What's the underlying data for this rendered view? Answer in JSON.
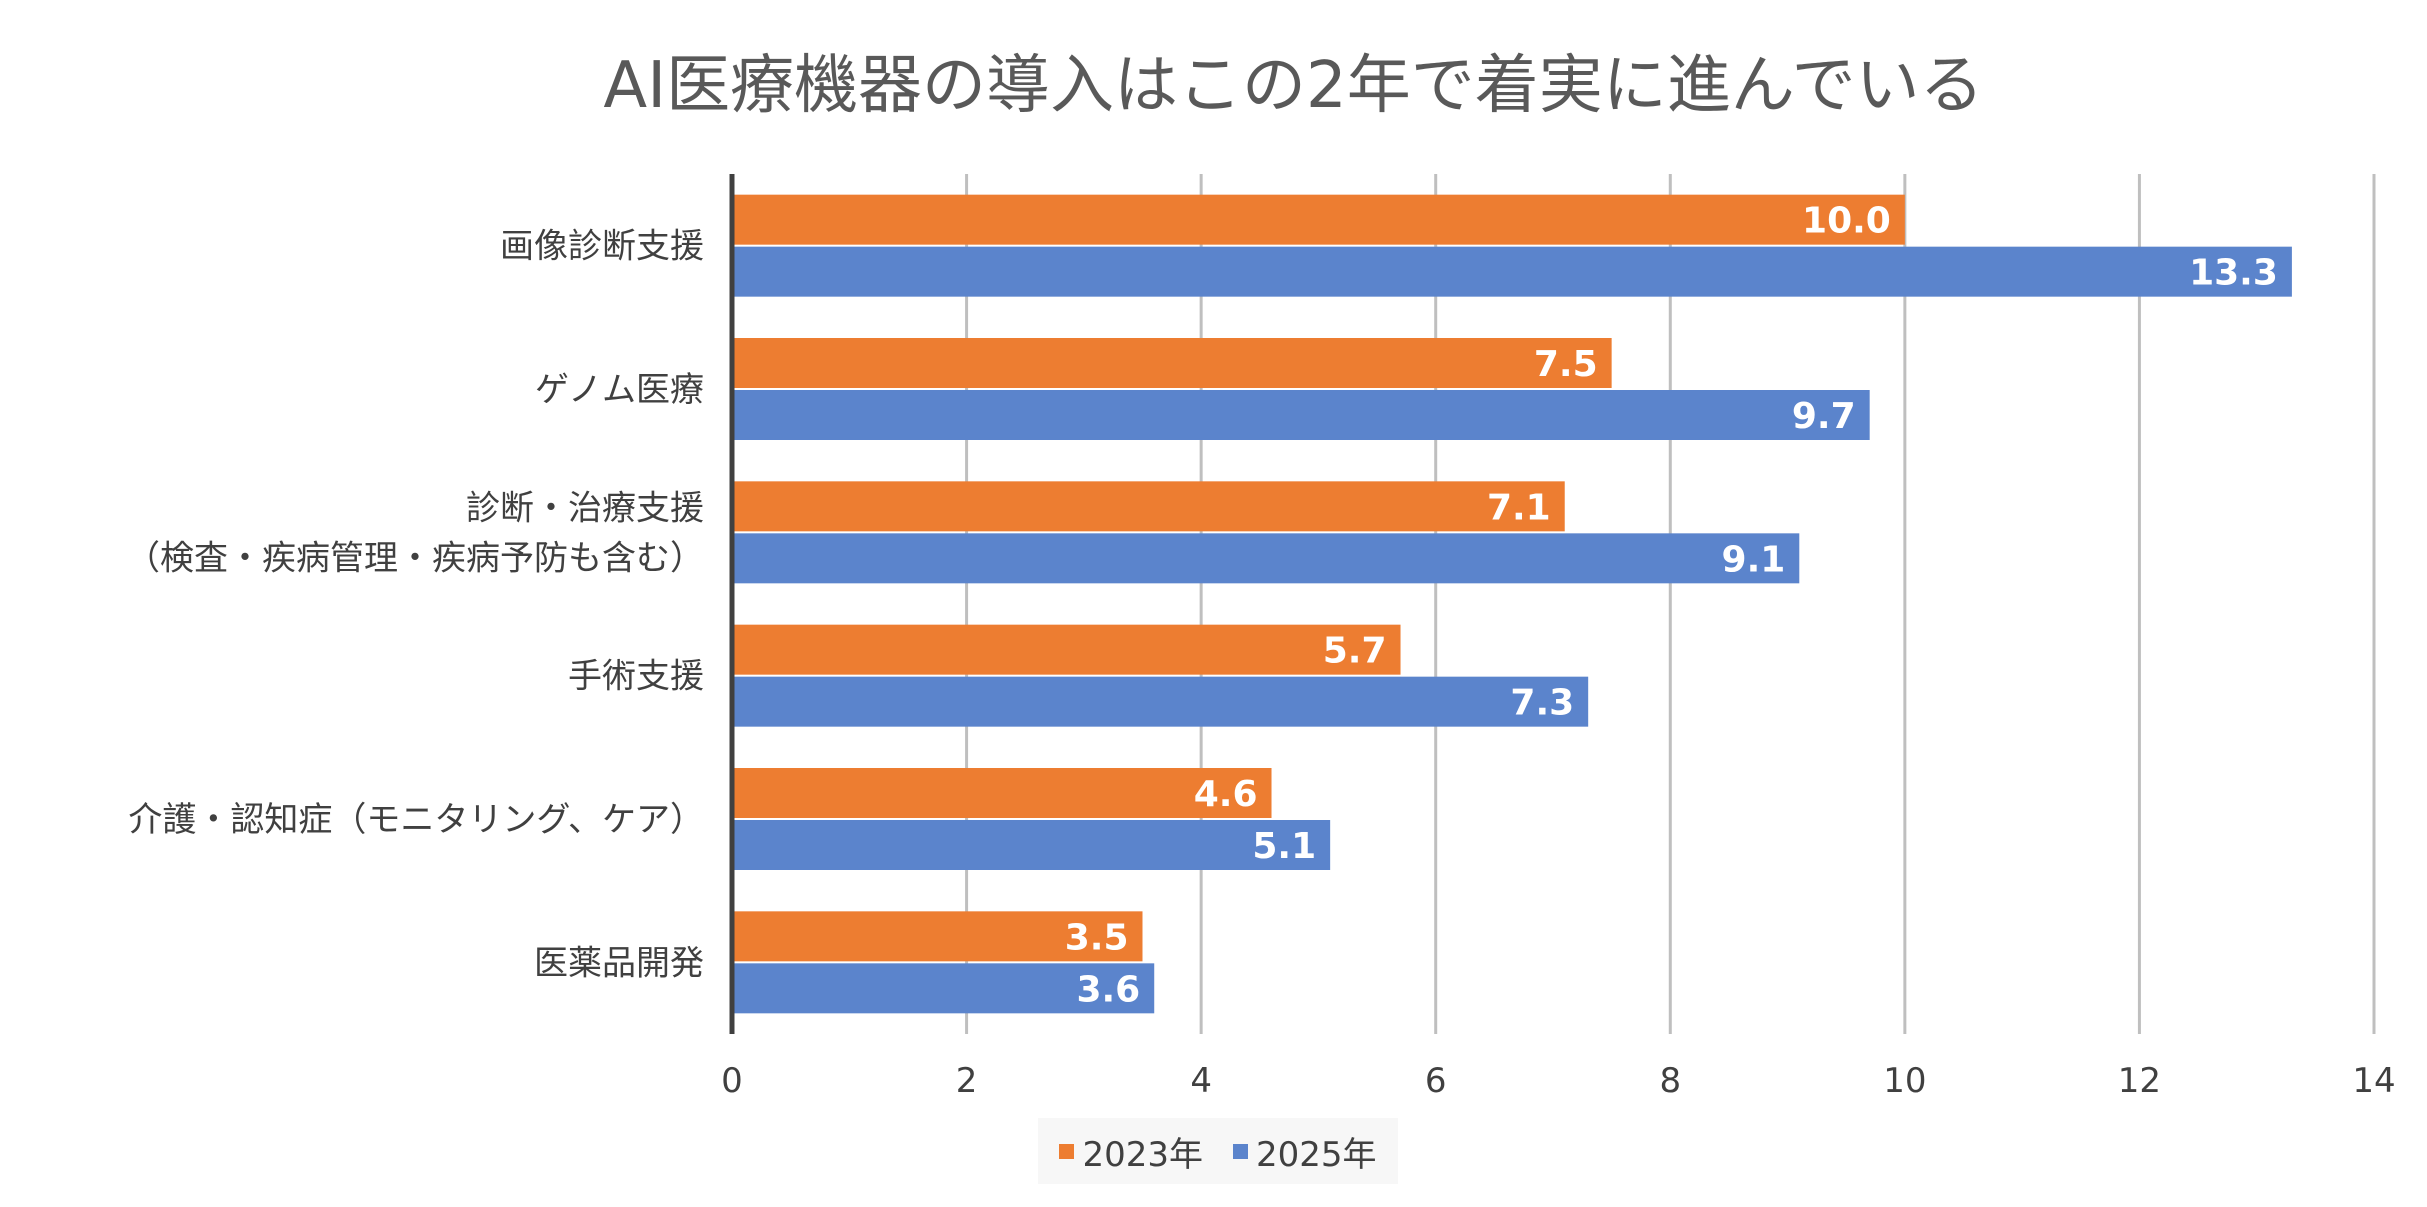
{
  "chart_data": {
    "type": "bar",
    "orientation": "horizontal",
    "title": "AI医療機器の導入はこの2年で着実に進んでいる",
    "xlabel": "",
    "ylabel": "",
    "xlim": [
      0,
      14
    ],
    "x_ticks": [
      "0",
      "2",
      "4",
      "6",
      "8",
      "10",
      "12",
      "14"
    ],
    "grid": "vertical",
    "legend_position": "bottom",
    "categories": [
      [
        "画像診断支援"
      ],
      [
        "ゲノム医療"
      ],
      [
        "診断・治療支援",
        "（検査・疾病管理・疾病予防も含む）"
      ],
      [
        "手術支援"
      ],
      [
        "介護・認知症（モニタリング、ケア）"
      ],
      [
        "医薬品開発"
      ]
    ],
    "series": [
      {
        "name": "2023年",
        "color": "#ed7d31",
        "values": [
          10.0,
          7.5,
          7.1,
          5.7,
          4.6,
          3.5
        ],
        "labels": [
          "10.0",
          "7.5",
          "7.1",
          "5.7",
          "4.6",
          "3.5"
        ]
      },
      {
        "name": "2025年",
        "color": "#5b84cc",
        "values": [
          13.3,
          9.7,
          9.1,
          7.3,
          5.1,
          3.6
        ],
        "labels": [
          "13.3",
          "9.7",
          "9.1",
          "7.3",
          "5.1",
          "3.6"
        ]
      }
    ]
  }
}
